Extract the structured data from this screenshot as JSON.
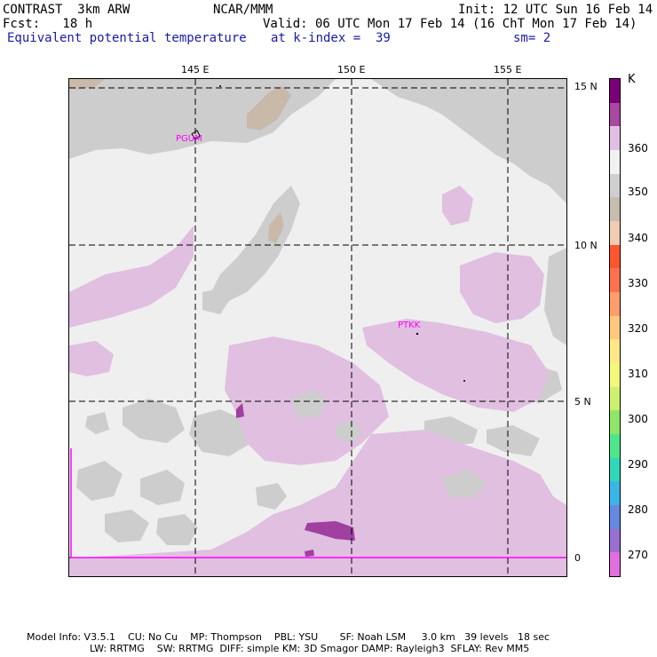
{
  "header": {
    "left_line1": "CONTRAST  3km ARW",
    "left_line2": "Fcst:   18 h",
    "center_line1": "NCAR/MMM",
    "right_line1": "Init: 12 UTC Sun 16 Feb 14",
    "valid_line": "Valid: 06 UTC Mon 17 Feb 14 (16 ChT Mon 17 Feb 14)",
    "field_name": "Equivalent potential temperature",
    "level": "at k-index =  39",
    "smoothing": "sm= 2"
  },
  "map": {
    "lon_labels": [
      "145 E",
      "150 E",
      "155 E"
    ],
    "lat_labels": [
      "15 N",
      "10 N",
      "5 N",
      "0"
    ],
    "stations": [
      "PGUM",
      "PTKK"
    ],
    "colors": {
      "background": "#efefef",
      "gray": "#cdcdcd",
      "tan": "#c9b9a9",
      "lilac": "#e0bfe0",
      "purple": "#a040a0",
      "station": "#ff00ff"
    }
  },
  "colorbar": {
    "unit": "K",
    "labels": [
      "360",
      "350",
      "340",
      "330",
      "320",
      "310",
      "300",
      "290",
      "280",
      "270"
    ],
    "colors": [
      "#7a0078",
      "#a848a0",
      "#e2bfe2",
      "#f2f2f2",
      "#cfcfcf",
      "#c8bcb1",
      "#f0ccb0",
      "#ff5530",
      "#ff7050",
      "#ff9e6a",
      "#ffc87e",
      "#ffe888",
      "#f3f77a",
      "#cdf06e",
      "#8fe66a",
      "#4ee68a",
      "#2ed8b8",
      "#3ab6e6",
      "#6688e0",
      "#9a70d0",
      "#e070e0"
    ]
  },
  "footer": {
    "line1": "Model Info: V3.5.1    CU: No Cu    MP: Thompson    PBL: YSU       SF: Noah LSM     3.0 km   39 levels   18 sec",
    "line2": "LW: RRTMG    SW: RRTMG  DIFF: simple KM: 3D Smagor DAMP: Rayleigh3  SFLAY: Rev MM5"
  }
}
